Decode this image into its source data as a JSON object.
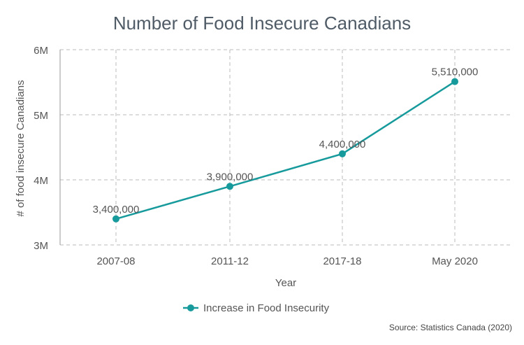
{
  "chart_data": {
    "type": "line",
    "title": "Number of Food Insecure Canadians",
    "xlabel": "Year",
    "ylabel": "# of food insecure Canadians",
    "categories": [
      "2007-08",
      "2011-12",
      "2017-18",
      "May 2020"
    ],
    "series": [
      {
        "name": "Increase in Food Insecurity",
        "values": [
          3400000,
          3900000,
          4400000,
          5510000
        ],
        "data_labels": [
          "3,400,000",
          "3,900,000",
          "4,400,000",
          "5,510,000"
        ],
        "color": "#179a9c"
      }
    ],
    "ylim": [
      3000000,
      6000000
    ],
    "yticks": [
      3000000,
      4000000,
      5000000,
      6000000
    ],
    "ytick_labels": [
      "3M",
      "4M",
      "5M",
      "6M"
    ],
    "grid": true,
    "legend_position": "bottom-center",
    "source": "Source: Statistics Canada (2020)",
    "colors": {
      "title": "#4f5b66",
      "axis_text": "#555555",
      "grid": "#bbbbbb",
      "label_text": "#555555"
    }
  }
}
